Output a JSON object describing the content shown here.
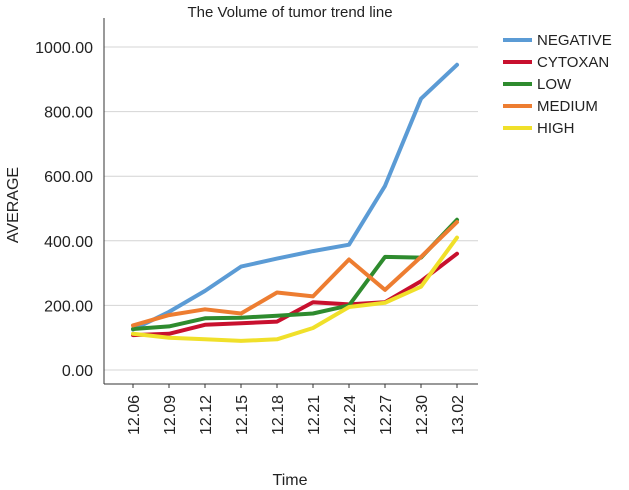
{
  "chart_data": {
    "type": "line",
    "title": "The Volume of tumor trend line",
    "xlabel": "Time",
    "ylabel": "AVERAGE",
    "categories": [
      "12.06",
      "12.09",
      "12.12",
      "12.15",
      "12.18",
      "12.21",
      "12.24",
      "12.27",
      "12.30",
      "13.02"
    ],
    "ylim": [
      0,
      1000
    ],
    "yticks": [
      "0.00",
      "200.00",
      "400.00",
      "600.00",
      "800.00",
      "1000.00"
    ],
    "grid": "horizontal",
    "legend_position": "top-right",
    "series": [
      {
        "name": "NEGATIVE",
        "color": "#5b9bd5",
        "values": [
          125,
          180,
          245,
          320,
          345,
          368,
          388,
          570,
          840,
          945
        ]
      },
      {
        "name": "CYTOXAN",
        "color": "#c8102e",
        "values": [
          108,
          112,
          140,
          145,
          150,
          210,
          203,
          210,
          275,
          360
        ]
      },
      {
        "name": "LOW",
        "color": "#2e8b2e",
        "values": [
          127,
          135,
          160,
          162,
          168,
          175,
          200,
          350,
          348,
          465
        ]
      },
      {
        "name": "MEDIUM",
        "color": "#ed7d31",
        "values": [
          138,
          170,
          188,
          175,
          240,
          228,
          342,
          248,
          350,
          458
        ]
      },
      {
        "name": "HIGH",
        "color": "#f0e02a",
        "values": [
          112,
          100,
          95,
          90,
          95,
          130,
          195,
          208,
          258,
          410
        ]
      }
    ]
  }
}
